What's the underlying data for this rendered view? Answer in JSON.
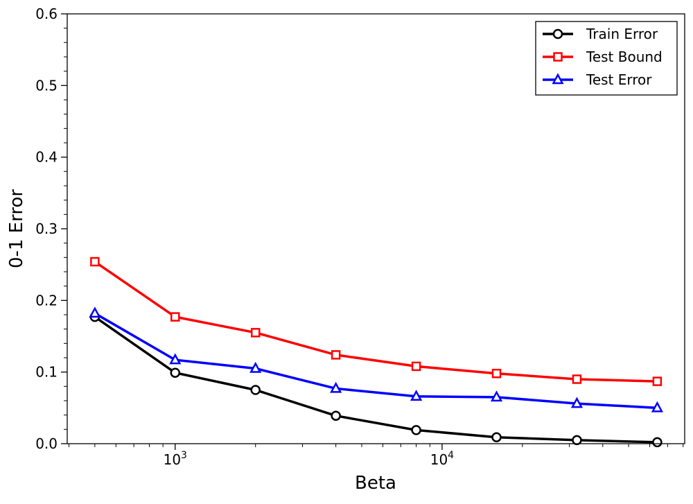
{
  "chart_data": {
    "type": "line",
    "title": "",
    "xlabel": "Beta",
    "ylabel": "0-1 Error",
    "xscale": "log",
    "xlim": [
      394,
      81100
    ],
    "ylim": [
      0,
      0.6
    ],
    "x": [
      500,
      1000,
      2000,
      4000,
      8000,
      16000,
      32000,
      64000
    ],
    "xticks": [
      {
        "value": 1000,
        "base": "10",
        "exp": "3"
      },
      {
        "value": 10000,
        "base": "10",
        "exp": "4"
      }
    ],
    "yticks": [
      "0.0",
      "0.1",
      "0.2",
      "0.3",
      "0.4",
      "0.5",
      "0.6"
    ],
    "grid": false,
    "legend_position": "top-right",
    "series": [
      {
        "name": "Train Error",
        "color": "#000000",
        "marker": "circle",
        "values": [
          0.177,
          0.099,
          0.075,
          0.039,
          0.019,
          0.009,
          0.005,
          0.002
        ]
      },
      {
        "name": "Test Bound",
        "color": "#ff0000",
        "marker": "square",
        "values": [
          0.254,
          0.177,
          0.155,
          0.124,
          0.108,
          0.098,
          0.09,
          0.087
        ]
      },
      {
        "name": "Test Error",
        "color": "#0000ff",
        "marker": "triangle",
        "values": [
          0.182,
          0.117,
          0.105,
          0.077,
          0.066,
          0.065,
          0.056,
          0.05
        ]
      }
    ]
  }
}
